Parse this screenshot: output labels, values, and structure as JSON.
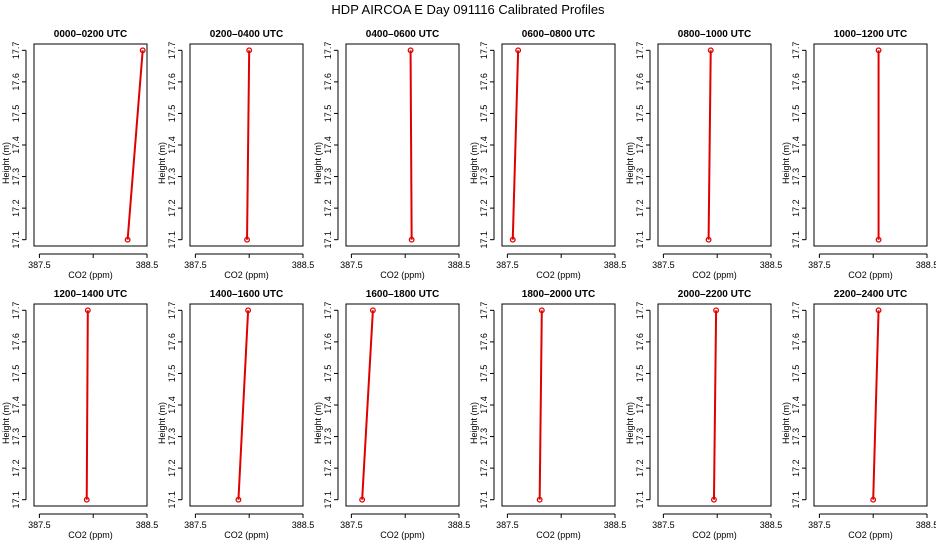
{
  "figure": {
    "title": "HDP AIRCOA E  Day 091116  Calibrated Profiles"
  },
  "colors": {
    "line": "#e00000",
    "axis": "#000000",
    "frame": "#000000"
  },
  "chart_data": [
    {
      "type": "line",
      "title": "0000–0200 UTC",
      "xlabel": "CO2 (ppm)",
      "ylabel": "Height (m)",
      "xlim": [
        387.45,
        388.5
      ],
      "ylim": [
        17.08,
        17.72
      ],
      "xticks": [
        "387.5",
        "388.5"
      ],
      "xtick_values": [
        387.5,
        388.5
      ],
      "yticks": [
        "17.1",
        "17.2",
        "17.3",
        "17.4",
        "17.5",
        "17.6",
        "17.7"
      ],
      "ytick_values": [
        17.1,
        17.2,
        17.3,
        17.4,
        17.5,
        17.6,
        17.7
      ],
      "x": [
        388.32,
        388.46
      ],
      "y": [
        17.1,
        17.7
      ]
    },
    {
      "type": "line",
      "title": "0200–0400 UTC",
      "xlabel": "CO2 (ppm)",
      "ylabel": "Height (m)",
      "xlim": [
        387.45,
        388.5
      ],
      "ylim": [
        17.08,
        17.72
      ],
      "xticks": [
        "387.5",
        "388.5"
      ],
      "xtick_values": [
        387.5,
        388.5
      ],
      "yticks": [
        "17.1",
        "17.2",
        "17.3",
        "17.4",
        "17.5",
        "17.6",
        "17.7"
      ],
      "ytick_values": [
        17.1,
        17.2,
        17.3,
        17.4,
        17.5,
        17.6,
        17.7
      ],
      "x": [
        387.98,
        388.0
      ],
      "y": [
        17.1,
        17.7
      ]
    },
    {
      "type": "line",
      "title": "0400–0600 UTC",
      "xlabel": "CO2 (ppm)",
      "ylabel": "Height (m)",
      "xlim": [
        387.45,
        388.5
      ],
      "ylim": [
        17.08,
        17.72
      ],
      "xticks": [
        "387.5",
        "388.5"
      ],
      "xtick_values": [
        387.5,
        388.5
      ],
      "yticks": [
        "17.1",
        "17.2",
        "17.3",
        "17.4",
        "17.5",
        "17.6",
        "17.7"
      ],
      "ytick_values": [
        17.1,
        17.2,
        17.3,
        17.4,
        17.5,
        17.6,
        17.7
      ],
      "x": [
        388.06,
        388.05
      ],
      "y": [
        17.1,
        17.7
      ]
    },
    {
      "type": "line",
      "title": "0600–0800 UTC",
      "xlabel": "CO2 (ppm)",
      "ylabel": "Height (m)",
      "xlim": [
        387.45,
        388.5
      ],
      "ylim": [
        17.08,
        17.72
      ],
      "xticks": [
        "387.5",
        "388.5"
      ],
      "xtick_values": [
        387.5,
        388.5
      ],
      "yticks": [
        "17.1",
        "17.2",
        "17.3",
        "17.4",
        "17.5",
        "17.6",
        "17.7"
      ],
      "ytick_values": [
        17.1,
        17.2,
        17.3,
        17.4,
        17.5,
        17.6,
        17.7
      ],
      "x": [
        387.55,
        387.6
      ],
      "y": [
        17.1,
        17.7
      ]
    },
    {
      "type": "line",
      "title": "0800–1000 UTC",
      "xlabel": "CO2 (ppm)",
      "ylabel": "Height (m)",
      "xlim": [
        387.45,
        388.5
      ],
      "ylim": [
        17.08,
        17.72
      ],
      "xticks": [
        "387.5",
        "388.5"
      ],
      "xtick_values": [
        387.5,
        388.5
      ],
      "yticks": [
        "17.1",
        "17.2",
        "17.3",
        "17.4",
        "17.5",
        "17.6",
        "17.7"
      ],
      "ytick_values": [
        17.1,
        17.2,
        17.3,
        17.4,
        17.5,
        17.6,
        17.7
      ],
      "x": [
        387.92,
        387.94
      ],
      "y": [
        17.1,
        17.7
      ]
    },
    {
      "type": "line",
      "title": "1000–1200 UTC",
      "xlabel": "CO2 (ppm)",
      "ylabel": "Height (m)",
      "xlim": [
        387.45,
        388.5
      ],
      "ylim": [
        17.08,
        17.72
      ],
      "xticks": [
        "387.5",
        "388.5"
      ],
      "xtick_values": [
        387.5,
        388.5
      ],
      "yticks": [
        "17.1",
        "17.2",
        "17.3",
        "17.4",
        "17.5",
        "17.6",
        "17.7"
      ],
      "ytick_values": [
        17.1,
        17.2,
        17.3,
        17.4,
        17.5,
        17.6,
        17.7
      ],
      "x": [
        388.05,
        388.05
      ],
      "y": [
        17.1,
        17.7
      ]
    },
    {
      "type": "line",
      "title": "1200–1400 UTC",
      "xlabel": "CO2 (ppm)",
      "ylabel": "Height (m)",
      "xlim": [
        387.45,
        388.5
      ],
      "ylim": [
        17.08,
        17.72
      ],
      "xticks": [
        "387.5",
        "388.5"
      ],
      "xtick_values": [
        387.5,
        388.5
      ],
      "yticks": [
        "17.1",
        "17.2",
        "17.3",
        "17.4",
        "17.5",
        "17.6",
        "17.7"
      ],
      "ytick_values": [
        17.1,
        17.2,
        17.3,
        17.4,
        17.5,
        17.6,
        17.7
      ],
      "x": [
        387.94,
        387.95
      ],
      "y": [
        17.1,
        17.7
      ]
    },
    {
      "type": "line",
      "title": "1400–1600 UTC",
      "xlabel": "CO2 (ppm)",
      "ylabel": "Height (m)",
      "xlim": [
        387.45,
        388.5
      ],
      "ylim": [
        17.08,
        17.72
      ],
      "xticks": [
        "387.5",
        "388.5"
      ],
      "xtick_values": [
        387.5,
        388.5
      ],
      "yticks": [
        "17.1",
        "17.2",
        "17.3",
        "17.4",
        "17.5",
        "17.6",
        "17.7"
      ],
      "ytick_values": [
        17.1,
        17.2,
        17.3,
        17.4,
        17.5,
        17.6,
        17.7
      ],
      "x": [
        387.9,
        387.99
      ],
      "y": [
        17.1,
        17.7
      ]
    },
    {
      "type": "line",
      "title": "1600–1800 UTC",
      "xlabel": "CO2 (ppm)",
      "ylabel": "Height (m)",
      "xlim": [
        387.45,
        388.5
      ],
      "ylim": [
        17.08,
        17.72
      ],
      "xticks": [
        "387.5",
        "388.5"
      ],
      "xtick_values": [
        387.5,
        388.5
      ],
      "yticks": [
        "17.1",
        "17.2",
        "17.3",
        "17.4",
        "17.5",
        "17.6",
        "17.7"
      ],
      "ytick_values": [
        17.1,
        17.2,
        17.3,
        17.4,
        17.5,
        17.6,
        17.7
      ],
      "x": [
        387.6,
        387.7
      ],
      "y": [
        17.1,
        17.7
      ]
    },
    {
      "type": "line",
      "title": "1800–2000 UTC",
      "xlabel": "CO2 (ppm)",
      "ylabel": "Height (m)",
      "xlim": [
        387.45,
        388.5
      ],
      "ylim": [
        17.08,
        17.72
      ],
      "xticks": [
        "387.5",
        "388.5"
      ],
      "xtick_values": [
        387.5,
        388.5
      ],
      "yticks": [
        "17.1",
        "17.2",
        "17.3",
        "17.4",
        "17.5",
        "17.6",
        "17.7"
      ],
      "ytick_values": [
        17.1,
        17.2,
        17.3,
        17.4,
        17.5,
        17.6,
        17.7
      ],
      "x": [
        387.8,
        387.82
      ],
      "y": [
        17.1,
        17.7
      ]
    },
    {
      "type": "line",
      "title": "2000–2200 UTC",
      "xlabel": "CO2 (ppm)",
      "ylabel": "Height (m)",
      "xlim": [
        387.45,
        388.5
      ],
      "ylim": [
        17.08,
        17.72
      ],
      "xticks": [
        "387.5",
        "388.5"
      ],
      "xtick_values": [
        387.5,
        388.5
      ],
      "yticks": [
        "17.1",
        "17.2",
        "17.3",
        "17.4",
        "17.5",
        "17.6",
        "17.7"
      ],
      "ytick_values": [
        17.1,
        17.2,
        17.3,
        17.4,
        17.5,
        17.6,
        17.7
      ],
      "x": [
        387.97,
        387.99
      ],
      "y": [
        17.1,
        17.7
      ]
    },
    {
      "type": "line",
      "title": "2200–2400 UTC",
      "xlabel": "CO2 (ppm)",
      "ylabel": "Height (m)",
      "xlim": [
        387.45,
        388.5
      ],
      "ylim": [
        17.08,
        17.72
      ],
      "xticks": [
        "387.5",
        "388.5"
      ],
      "xtick_values": [
        387.5,
        388.5
      ],
      "yticks": [
        "17.1",
        "17.2",
        "17.3",
        "17.4",
        "17.5",
        "17.6",
        "17.7"
      ],
      "ytick_values": [
        17.1,
        17.2,
        17.3,
        17.4,
        17.5,
        17.6,
        17.7
      ],
      "x": [
        388.0,
        388.05
      ],
      "y": [
        17.1,
        17.7
      ]
    }
  ]
}
